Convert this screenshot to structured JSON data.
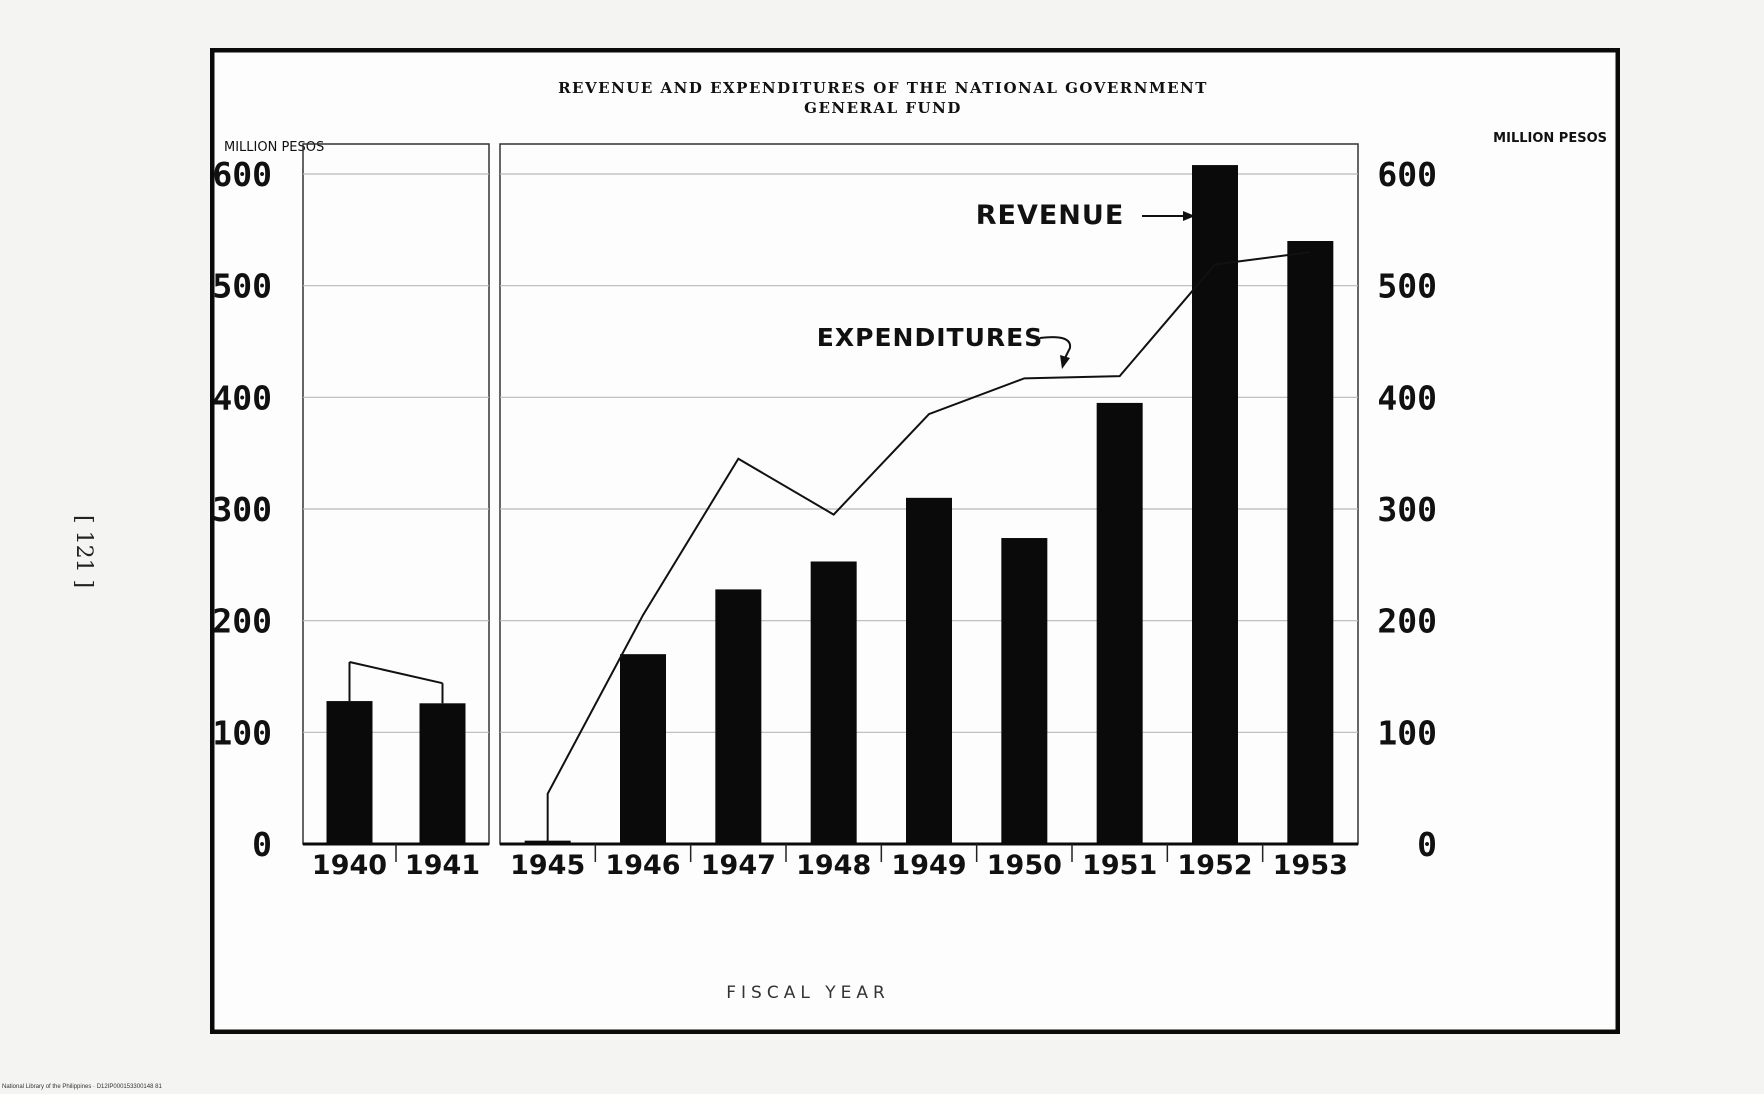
{
  "page_number": "[ 121 ]",
  "footer_text": "National Library of the Philippines · D12IP000153300148 81",
  "chart_data": {
    "type": "bar",
    "title": "REVENUE AND EXPENDITURES OF THE NATIONAL GOVERNMENT",
    "subtitle": "GENERAL FUND",
    "xlabel": "FISCAL YEAR",
    "ylabel_left": "MILLION PESOS",
    "ylabel_right": "MILLION PESOS",
    "ylim": [
      0,
      600
    ],
    "yticks": [
      0,
      100,
      200,
      300,
      400,
      500,
      600
    ],
    "categories": [
      "1940",
      "1941",
      "1945",
      "1946",
      "1947",
      "1948",
      "1949",
      "1950",
      "1951",
      "1952",
      "1953"
    ],
    "panels": [
      {
        "categories": [
          "1940",
          "1941"
        ]
      },
      {
        "categories": [
          "1945",
          "1946",
          "1947",
          "1948",
          "1949",
          "1950",
          "1951",
          "1952",
          "1953"
        ]
      }
    ],
    "series": [
      {
        "name": "REVENUE",
        "render": "bar",
        "color": "#0a0a0a",
        "values": [
          128,
          126,
          3,
          170,
          228,
          253,
          310,
          274,
          395,
          608,
          540
        ]
      },
      {
        "name": "EXPENDITURES",
        "render": "line",
        "color": "#111111",
        "values": [
          163,
          144,
          45,
          205,
          345,
          295,
          385,
          417,
          419,
          519,
          530
        ]
      }
    ],
    "annotations": [
      "REVENUE",
      "EXPENDITURES"
    ],
    "grid": true,
    "colors": {
      "ink": "#0a0a0a",
      "paper": "#fdfdfd",
      "grid": "#b8b8b8"
    }
  }
}
